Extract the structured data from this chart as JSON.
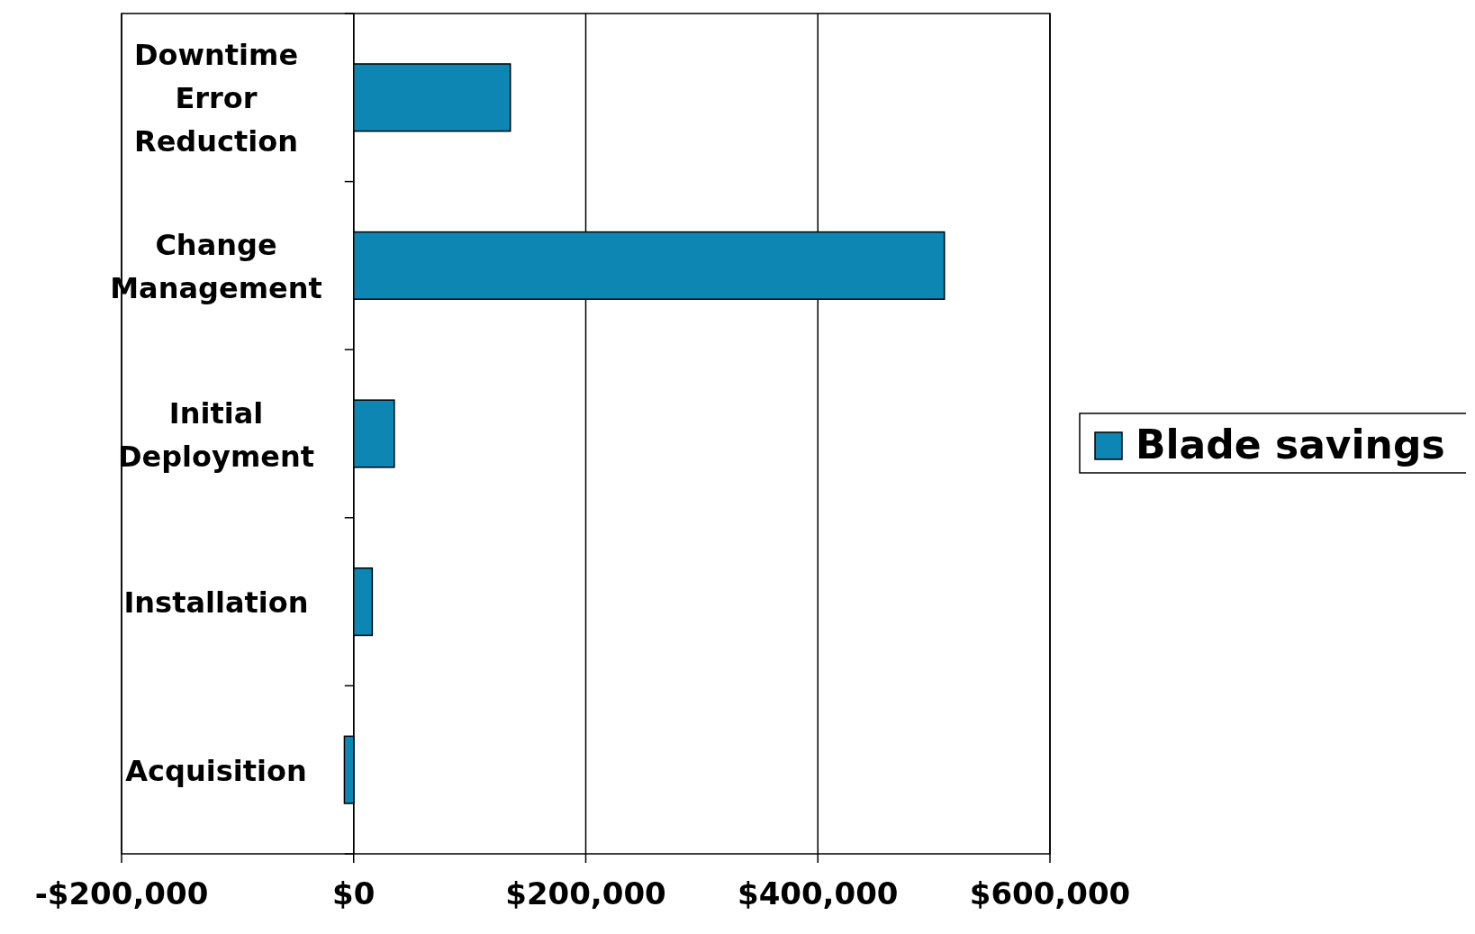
{
  "chart_data": {
    "type": "bar",
    "orientation": "horizontal",
    "categories": [
      "Downtime Error Reduction",
      "Change Management",
      "Initial Deployment",
      "Installation",
      "Acquisition"
    ],
    "series": [
      {
        "name": "Blade savings",
        "color": "#0e86b4",
        "values": [
          135000,
          509000,
          35000,
          16000,
          -8000
        ]
      }
    ],
    "xlim": [
      -200000,
      600000
    ],
    "xticks": [
      {
        "value": -200000,
        "label": "-$200,000"
      },
      {
        "value": 0,
        "label": "$0"
      },
      {
        "value": 200000,
        "label": "$200,000"
      },
      {
        "value": 400000,
        "label": "$400,000"
      },
      {
        "value": 600000,
        "label": "$600,000"
      }
    ],
    "grid": "x",
    "legend": "right"
  }
}
